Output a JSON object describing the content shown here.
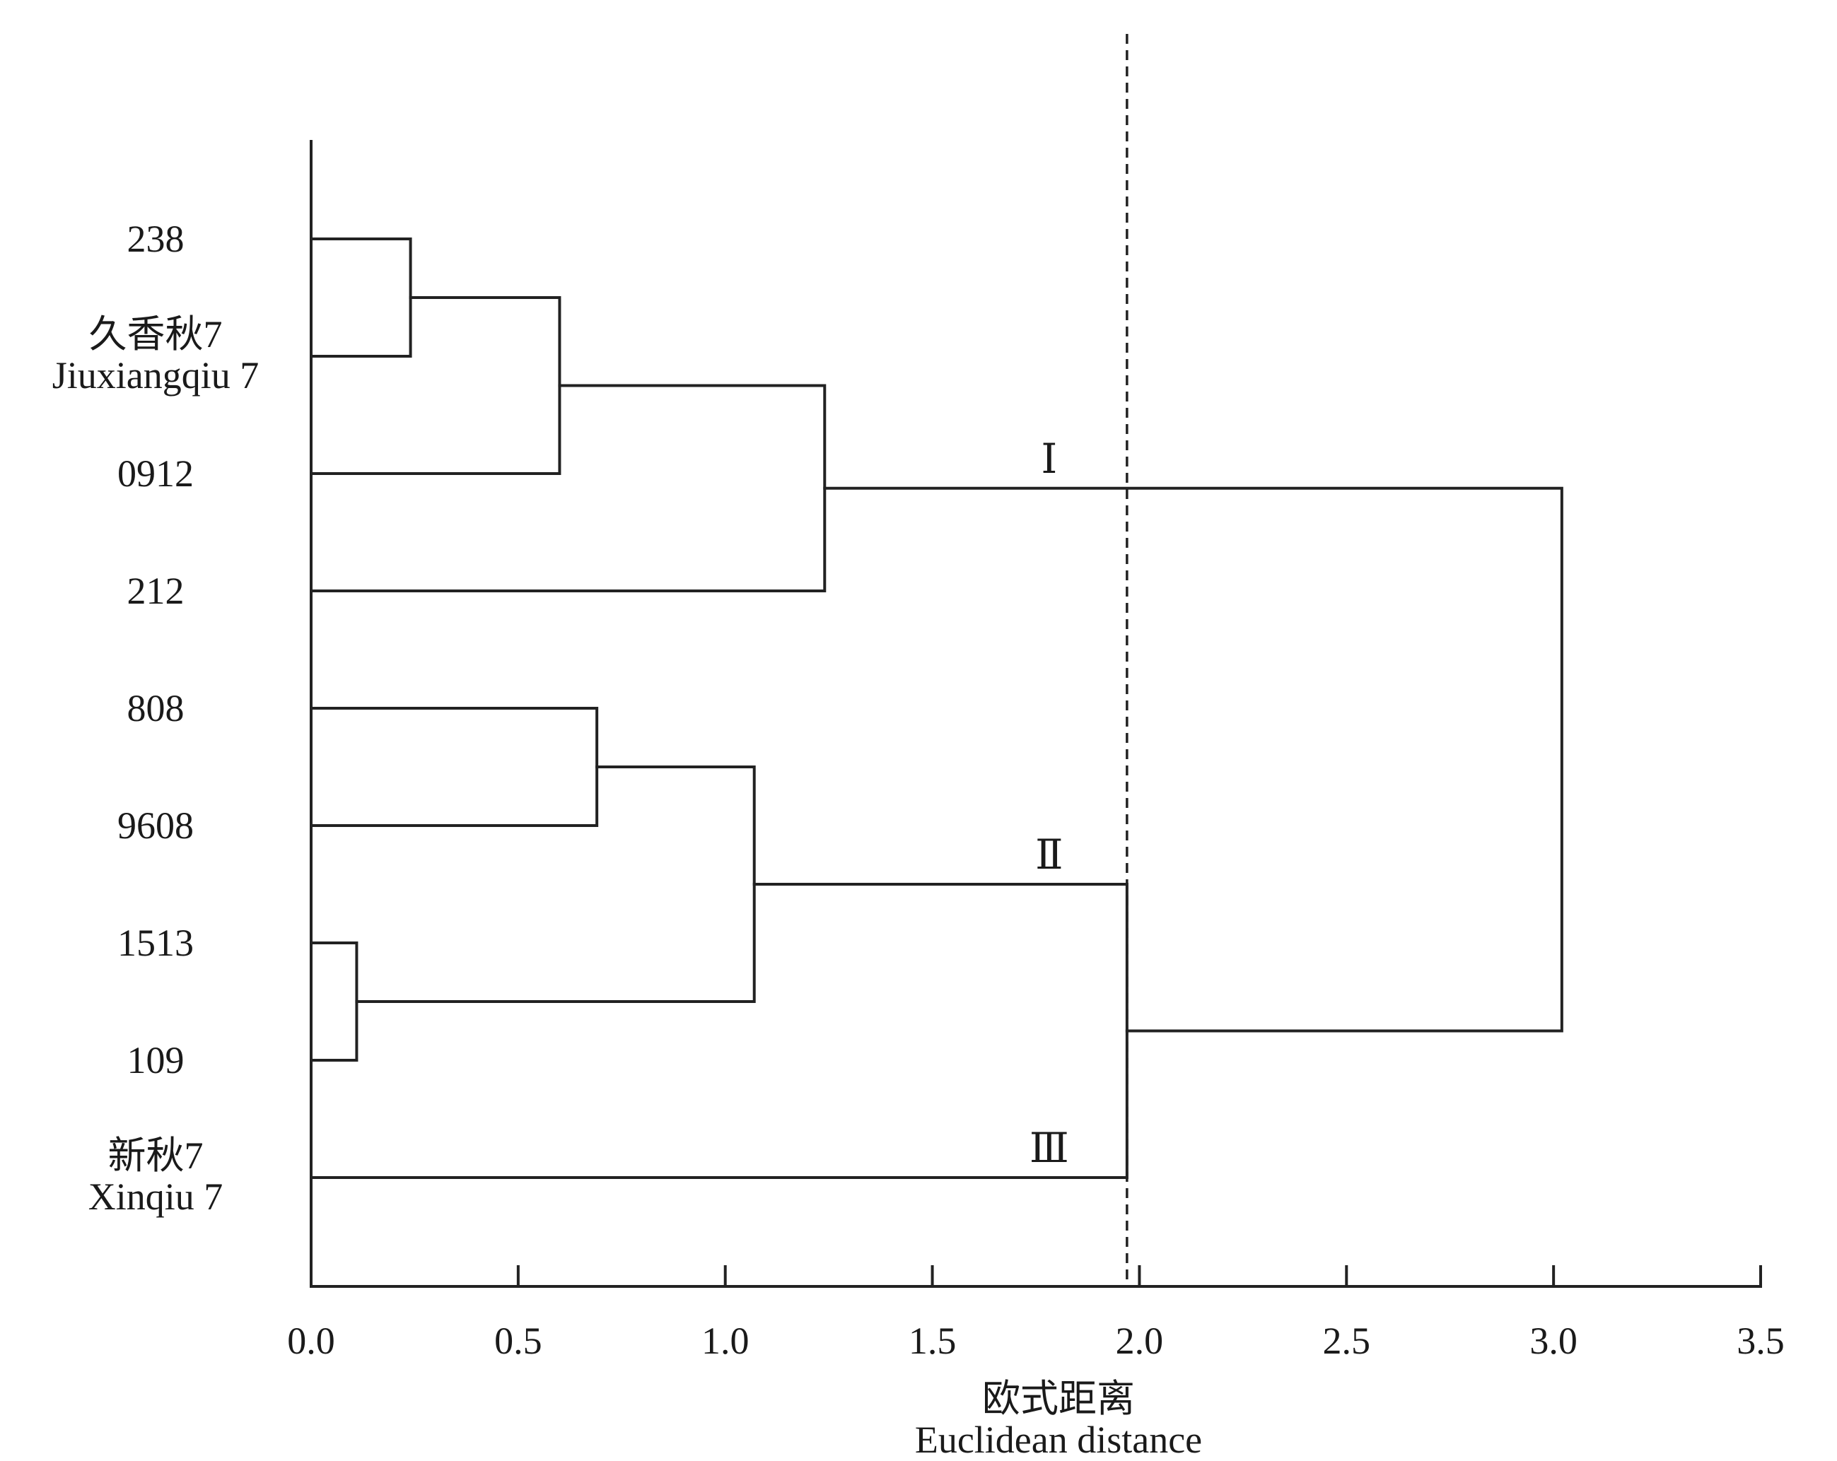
{
  "chart_data": {
    "type": "dendrogram",
    "title": "",
    "xlabel_zh": "欧式距离",
    "xlabel_en": "Euclidean distance",
    "xlim": [
      0,
      3.5
    ],
    "x_ticks": [
      "0.0",
      "0.5",
      "1.0",
      "1.5",
      "2.0",
      "2.5",
      "3.0",
      "3.5"
    ],
    "x_tick_values": [
      0.0,
      0.5,
      1.0,
      1.5,
      2.0,
      2.5,
      3.0,
      3.5
    ],
    "leaves": [
      {
        "id": "238",
        "label": "238",
        "label2": ""
      },
      {
        "id": "jxq7",
        "label": "久香秋7",
        "label2": "Jiuxiangqiu 7"
      },
      {
        "id": "0912",
        "label": "0912",
        "label2": ""
      },
      {
        "id": "212",
        "label": "212",
        "label2": ""
      },
      {
        "id": "808",
        "label": "808",
        "label2": ""
      },
      {
        "id": "9608",
        "label": "9608",
        "label2": ""
      },
      {
        "id": "1513",
        "label": "1513",
        "label2": ""
      },
      {
        "id": "109",
        "label": "109",
        "label2": ""
      },
      {
        "id": "xq7",
        "label": "新秋7",
        "label2": "Xinqiu 7"
      }
    ],
    "merges": [
      {
        "id": "m1",
        "a": "238",
        "b": "jxq7",
        "height": 0.24
      },
      {
        "id": "m2",
        "a": "m1",
        "b": "0912",
        "height": 0.6
      },
      {
        "id": "m3",
        "a": "m2",
        "b": "212",
        "height": 1.24
      },
      {
        "id": "m4",
        "a": "808",
        "b": "9608",
        "height": 0.69
      },
      {
        "id": "m5",
        "a": "1513",
        "b": "109",
        "height": 0.11
      },
      {
        "id": "m6",
        "a": "m4",
        "b": "m5",
        "height": 1.07
      },
      {
        "id": "m7",
        "a": "m6",
        "b": "xq7",
        "height": 1.97
      },
      {
        "id": "m8",
        "a": "m3",
        "b": "m7",
        "height": 3.02
      }
    ],
    "cut_height": 1.97,
    "clusters": [
      {
        "label": "Ⅰ",
        "node": "m3"
      },
      {
        "label": "Ⅱ",
        "node": "m6"
      },
      {
        "label": "Ⅲ",
        "node": "xq7"
      }
    ]
  }
}
